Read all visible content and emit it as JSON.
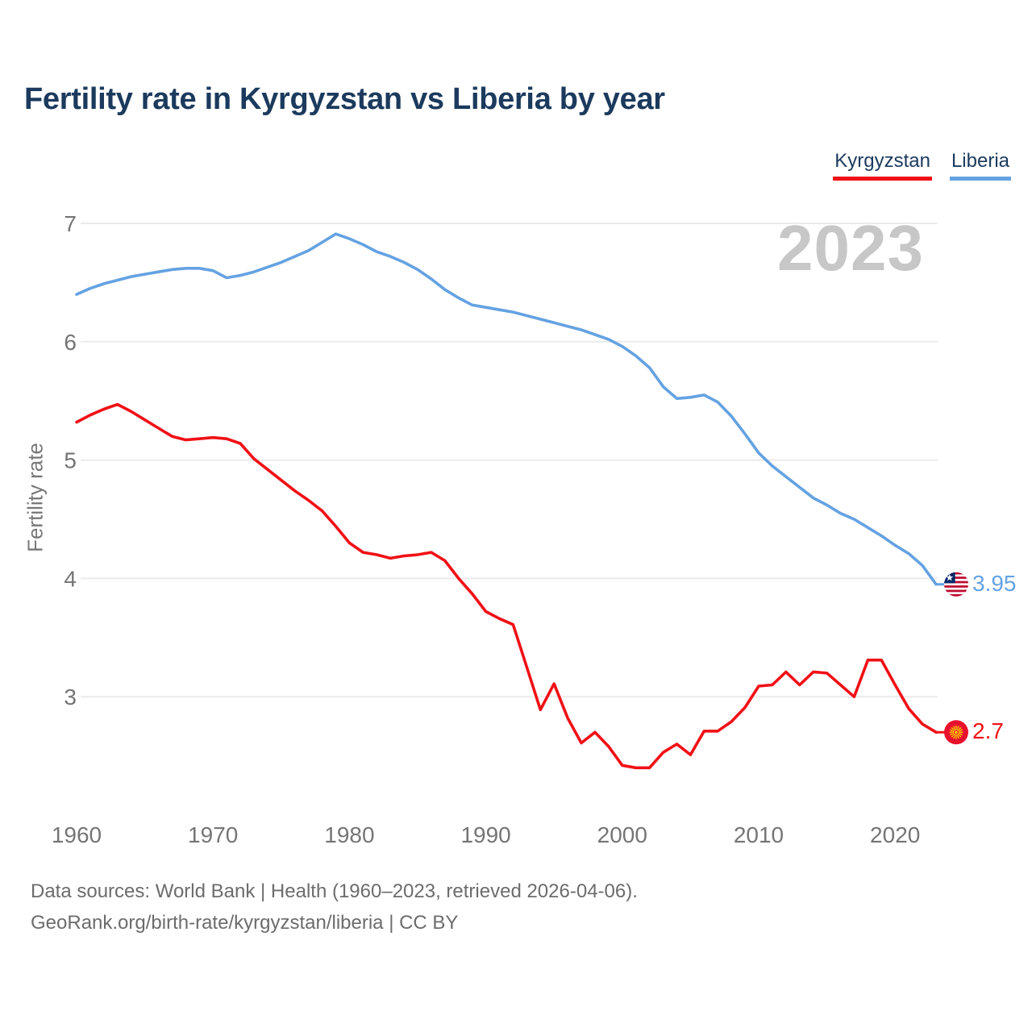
{
  "title": "Fertility rate in Kyrgyzstan vs Liberia by year",
  "watermark": "2023",
  "legend": [
    {
      "label": "Kyrgyzstan",
      "color": "#f01116"
    },
    {
      "label": "Liberia",
      "color": "#64a2e2"
    }
  ],
  "footer": {
    "line1": "Data sources: World Bank | Health (1960–2023, retrieved 2026-04-06).",
    "line2": "GeoRank.org/birth-rate/kyrgyzstan/liberia | CC BY"
  },
  "chart_data": {
    "type": "line",
    "title": "Fertility rate in Kyrgyzstan vs Liberia by year",
    "xlabel": "",
    "ylabel": "Fertility rate",
    "xlim": [
      1960,
      2023
    ],
    "ylim": [
      2.2,
      7.1
    ],
    "xticks": [
      1960,
      1970,
      1980,
      1990,
      2000,
      2010,
      2020
    ],
    "yticks": [
      7,
      6,
      5,
      4,
      3
    ],
    "grid": "horizontal-only",
    "legend_position": "top-right",
    "x": [
      1960,
      1961,
      1962,
      1963,
      1964,
      1965,
      1966,
      1967,
      1968,
      1969,
      1970,
      1971,
      1972,
      1973,
      1974,
      1975,
      1976,
      1977,
      1978,
      1979,
      1980,
      1981,
      1982,
      1983,
      1984,
      1985,
      1986,
      1987,
      1988,
      1989,
      1990,
      1991,
      1992,
      1993,
      1994,
      1995,
      1996,
      1997,
      1998,
      1999,
      2000,
      2001,
      2002,
      2003,
      2004,
      2005,
      2006,
      2007,
      2008,
      2009,
      2010,
      2011,
      2012,
      2013,
      2014,
      2015,
      2016,
      2017,
      2018,
      2019,
      2020,
      2021,
      2022,
      2023
    ],
    "series": [
      {
        "name": "Kyrgyzstan",
        "color": "#f01116",
        "flag": "kyrgyzstan",
        "end_label": "2.7",
        "end_value": 2.7,
        "values": [
          5.32,
          5.38,
          5.43,
          5.47,
          5.41,
          5.34,
          5.27,
          5.2,
          5.17,
          5.18,
          5.19,
          5.18,
          5.14,
          5.01,
          4.92,
          4.83,
          4.74,
          4.66,
          4.57,
          4.44,
          4.3,
          4.22,
          4.2,
          4.17,
          4.19,
          4.2,
          4.22,
          4.15,
          4.0,
          3.87,
          3.72,
          3.66,
          3.61,
          3.25,
          2.89,
          3.11,
          2.82,
          2.61,
          2.7,
          2.58,
          2.42,
          2.4,
          2.4,
          2.53,
          2.6,
          2.51,
          2.71,
          2.71,
          2.79,
          2.91,
          3.09,
          3.1,
          3.21,
          3.1,
          3.21,
          3.2,
          3.1,
          3.0,
          3.31,
          3.31,
          3.1,
          2.9,
          2.77,
          2.7
        ]
      },
      {
        "name": "Liberia",
        "color": "#64a2e2",
        "flag": "liberia",
        "end_label": "3.95",
        "end_value": 3.95,
        "values": [
          6.4,
          6.45,
          6.49,
          6.52,
          6.55,
          6.57,
          6.59,
          6.61,
          6.62,
          6.62,
          6.6,
          6.54,
          6.56,
          6.59,
          6.63,
          6.67,
          6.72,
          6.77,
          6.84,
          6.91,
          6.87,
          6.82,
          6.76,
          6.72,
          6.67,
          6.61,
          6.53,
          6.44,
          6.37,
          6.31,
          6.29,
          6.27,
          6.25,
          6.22,
          6.19,
          6.16,
          6.13,
          6.1,
          6.06,
          6.02,
          5.96,
          5.88,
          5.78,
          5.62,
          5.52,
          5.53,
          5.55,
          5.49,
          5.37,
          5.22,
          5.06,
          4.95,
          4.86,
          4.77,
          4.68,
          4.62,
          4.55,
          4.5,
          4.43,
          4.36,
          4.28,
          4.21,
          4.11,
          3.95
        ]
      }
    ]
  }
}
